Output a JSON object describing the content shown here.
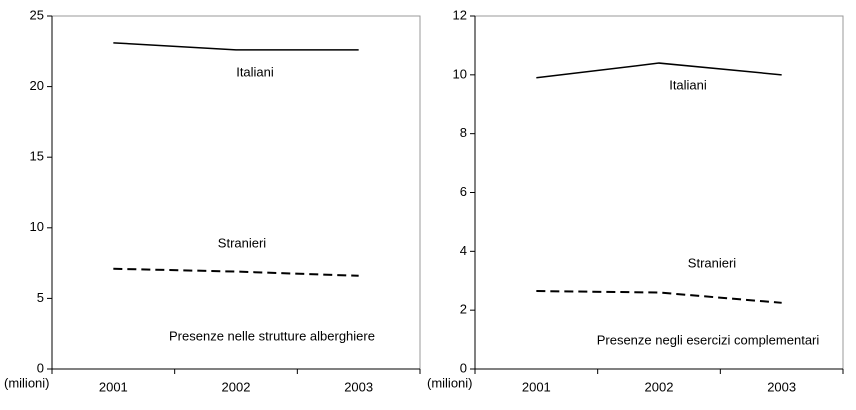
{
  "chart_data": [
    {
      "type": "line",
      "categories": [
        "2001",
        "2002",
        "2003"
      ],
      "y_unit": "(milioni)",
      "annotation": "Presenze nelle strutture alberghiere",
      "ylim": [
        0,
        25
      ],
      "yticks": [
        0,
        5,
        10,
        15,
        20,
        25
      ],
      "series": [
        {
          "name": "Italiani",
          "color": "#000000",
          "line_style": "solid",
          "values": [
            23.1,
            22.6,
            22.6
          ]
        },
        {
          "name": "Stranieri",
          "color": "#000000",
          "line_style": "dashed",
          "values": [
            7.1,
            6.9,
            6.6
          ]
        }
      ]
    },
    {
      "type": "line",
      "categories": [
        "2001",
        "2002",
        "2003"
      ],
      "y_unit": "(milioni)",
      "annotation": "Presenze negli esercizi complementari",
      "ylim": [
        0,
        12
      ],
      "yticks": [
        0,
        2,
        4,
        6,
        8,
        10,
        12
      ],
      "series": [
        {
          "name": "Italiani",
          "color": "#000000",
          "line_style": "solid",
          "values": [
            9.9,
            10.4,
            10.0
          ]
        },
        {
          "name": "Stranieri",
          "color": "#000000",
          "line_style": "dashed",
          "values": [
            2.65,
            2.6,
            2.25
          ]
        }
      ]
    }
  ]
}
